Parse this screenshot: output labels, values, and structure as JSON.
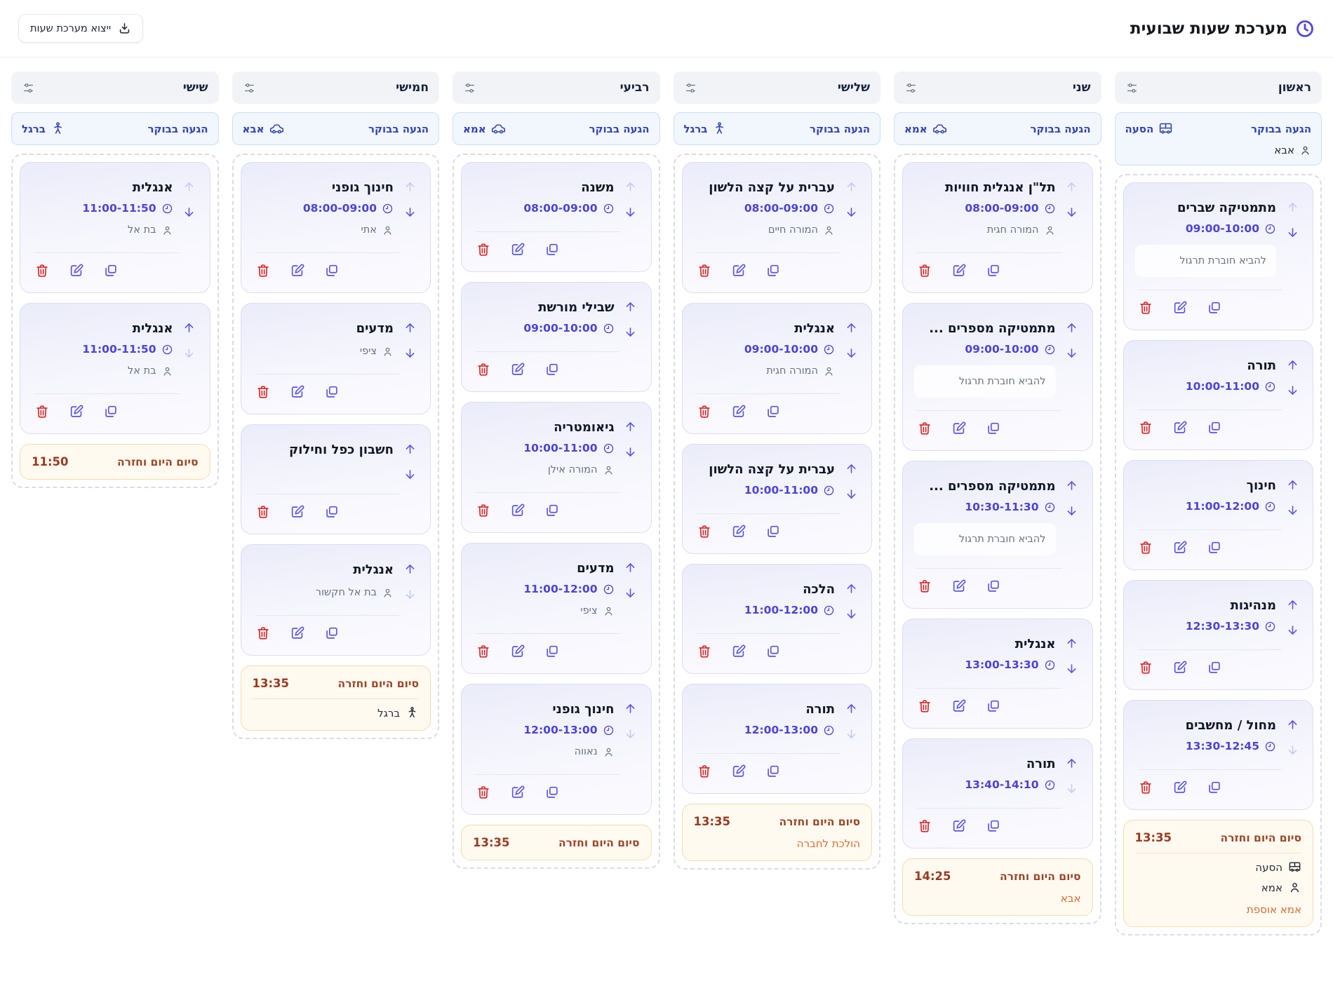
{
  "header": {
    "title": "מערכת שעות שבועית",
    "export_label": "ייצוא מערכת שעות"
  },
  "theme": {
    "accent_indigo": "#4f46e5",
    "danger_red": "#dc2626",
    "arrival_blue": "#3344b5",
    "end_card_brick": "#9c4527",
    "end_card_note_orange": "#dd6a2e"
  },
  "days": [
    {
      "name": "ראשון",
      "arrival": {
        "label": "הגעה בבוקר",
        "transport": {
          "icon": "bus",
          "label": "הסעה"
        },
        "person": {
          "icon": "person",
          "label": "אבא"
        }
      },
      "lessons": [
        {
          "title": "מתמטיקה שברים",
          "time": "09:00-10:00",
          "note": "להביא חוברת תרגול",
          "can_move_up": false,
          "can_move_down": true
        },
        {
          "title": "תורה",
          "time": "10:00-11:00",
          "can_move_up": true,
          "can_move_down": true
        },
        {
          "title": "חינוך",
          "time": "11:00-12:00",
          "can_move_up": true,
          "can_move_down": true
        },
        {
          "title": "מנהיגות",
          "time": "12:30-13:30",
          "can_move_up": true,
          "can_move_down": true
        },
        {
          "title": "מחול / מחשבים",
          "time": "13:30-12:45",
          "can_move_up": true,
          "can_move_down": false
        }
      ],
      "end": {
        "label": "סיום היום וחזרה",
        "time": "13:35",
        "rows": [
          {
            "icon": "bus",
            "label": "הסעה"
          },
          {
            "icon": "person",
            "label": "אמא"
          }
        ],
        "note": "אמא אוספת"
      }
    },
    {
      "name": "שני",
      "arrival": {
        "label": "הגעה בבוקר",
        "transport": {
          "icon": "car",
          "label": "אמא"
        }
      },
      "lessons": [
        {
          "title": "תל\"ן אנגלית חוויות",
          "time": "08:00-09:00",
          "teacher": "המורה חגית",
          "can_move_up": false,
          "can_move_down": true
        },
        {
          "title": "מתמטיקה מספרים ...",
          "time": "09:00-10:00",
          "note": "להביא חוברת תרגול",
          "can_move_up": true,
          "can_move_down": true
        },
        {
          "title": "מתמטיקה מספרים ...",
          "time": "10:30-11:30",
          "note": "להביא חוברת תרגול",
          "can_move_up": true,
          "can_move_down": true
        },
        {
          "title": "אנגלית",
          "time": "13:00-13:30",
          "can_move_up": true,
          "can_move_down": true
        },
        {
          "title": "תורה",
          "time": "13:40-14:10",
          "can_move_up": true,
          "can_move_down": false
        }
      ],
      "end": {
        "label": "סיום היום וחזרה",
        "time": "14:25",
        "rows": [],
        "note": "אבא"
      }
    },
    {
      "name": "שלישי",
      "arrival": {
        "label": "הגעה בבוקר",
        "transport": {
          "icon": "walk",
          "label": "ברגל"
        }
      },
      "lessons": [
        {
          "title": "עברית על קצה הלשון",
          "time": "08:00-09:00",
          "teacher": "המורה חיים",
          "can_move_up": false,
          "can_move_down": true
        },
        {
          "title": "אנגלית",
          "time": "09:00-10:00",
          "teacher": "המורה חגית",
          "can_move_up": true,
          "can_move_down": true
        },
        {
          "title": "עברית על קצה הלשון",
          "time": "10:00-11:00",
          "can_move_up": true,
          "can_move_down": true
        },
        {
          "title": "הלכה",
          "time": "11:00-12:00",
          "can_move_up": true,
          "can_move_down": true
        },
        {
          "title": "תורה",
          "time": "12:00-13:00",
          "can_move_up": true,
          "can_move_down": false
        }
      ],
      "end": {
        "label": "סיום היום וחזרה",
        "time": "13:35",
        "rows": [],
        "note": "הולכת לחברה"
      }
    },
    {
      "name": "רביעי",
      "arrival": {
        "label": "הגעה בבוקר",
        "transport": {
          "icon": "car",
          "label": "אמא"
        }
      },
      "lessons": [
        {
          "title": "משנה",
          "time": "08:00-09:00",
          "can_move_up": false,
          "can_move_down": true
        },
        {
          "title": "שבילי מורשת",
          "time": "09:00-10:00",
          "can_move_up": true,
          "can_move_down": true
        },
        {
          "title": "גיאומטריה",
          "time": "10:00-11:00",
          "teacher": "המורה אילן",
          "can_move_up": true,
          "can_move_down": true
        },
        {
          "title": "מדעים",
          "time": "11:00-12:00",
          "teacher": "ציפי",
          "can_move_up": true,
          "can_move_down": true
        },
        {
          "title": "חינוך גופני",
          "time": "12:00-13:00",
          "teacher": "נאווה",
          "can_move_up": true,
          "can_move_down": false
        }
      ],
      "end": {
        "label": "סיום היום וחזרה",
        "time": "13:35",
        "rows": []
      }
    },
    {
      "name": "חמישי",
      "arrival": {
        "label": "הגעה בבוקר",
        "transport": {
          "icon": "car",
          "label": "אבא"
        }
      },
      "lessons": [
        {
          "title": "חינוך גופני",
          "time": "08:00-09:00",
          "teacher": "אתי",
          "can_move_up": false,
          "can_move_down": true
        },
        {
          "title": "מדעים",
          "teacher": "ציפי",
          "can_move_up": true,
          "can_move_down": true
        },
        {
          "title": "חשבון כפל וחילוק",
          "can_move_up": true,
          "can_move_down": true
        },
        {
          "title": "אנגלית",
          "teacher": "בת אל חקשור",
          "can_move_up": true,
          "can_move_down": false
        }
      ],
      "end": {
        "label": "סיום היום וחזרה",
        "time": "13:35",
        "rows": [
          {
            "icon": "walk",
            "label": "ברגל"
          }
        ]
      }
    },
    {
      "name": "שישי",
      "arrival": {
        "label": "הגעה בבוקר",
        "transport": {
          "icon": "walk",
          "label": "ברגל"
        }
      },
      "lessons": [
        {
          "title": "אנגלית",
          "time": "11:00-11:50",
          "teacher": "בת אל",
          "can_move_up": false,
          "can_move_down": true
        },
        {
          "title": "אנגלית",
          "time": "11:00-11:50",
          "teacher": "בת אל",
          "can_move_up": true,
          "can_move_down": false
        }
      ],
      "end": {
        "label": "סיום היום וחזרה",
        "time": "11:50",
        "rows": []
      }
    }
  ]
}
